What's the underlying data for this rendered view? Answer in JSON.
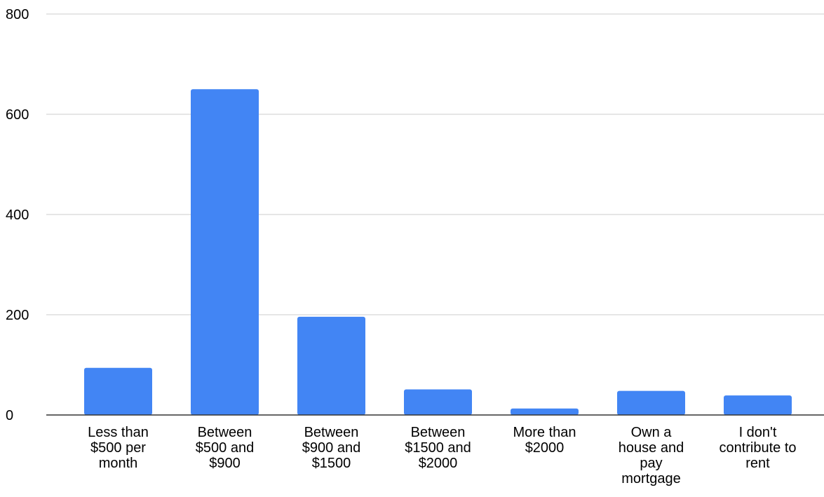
{
  "chart_data": {
    "type": "bar",
    "title": "",
    "xlabel": "",
    "ylabel": "",
    "categories": [
      "Less than $500 per month",
      "Between $500 and $900",
      "Between $900 and $1500",
      "Between $1500 and $2000",
      "More than $2000",
      "Own a house and pay mortgage",
      "I don't contribute to rent"
    ],
    "category_label_lines": [
      [
        "Less than",
        "$500 per",
        "month"
      ],
      [
        "Between",
        "$500 and",
        "$900"
      ],
      [
        "Between",
        "$900 and",
        "$1500"
      ],
      [
        "Between",
        "$1500 and",
        "$2000"
      ],
      [
        "More than",
        "$2000"
      ],
      [
        "Own a",
        "house and",
        "pay",
        "mortgage"
      ],
      [
        "I don't",
        "contribute to",
        "rent"
      ]
    ],
    "values": [
      94,
      650,
      196,
      51,
      13,
      48,
      39
    ],
    "ylim": [
      0,
      800
    ],
    "yticks": [
      0,
      200,
      400,
      600,
      800
    ],
    "ytick_labels": [
      "0",
      "200",
      "400",
      "600",
      "800"
    ],
    "grid": true,
    "legend": "none",
    "bar_color": "#4285F4",
    "grid_color": "#cccccc",
    "axis_color": "#333333"
  }
}
